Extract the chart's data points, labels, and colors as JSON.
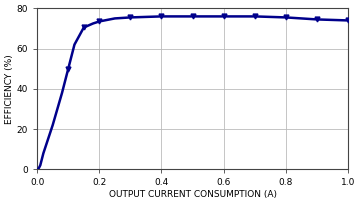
{
  "x": [
    0,
    0.005,
    0.01,
    0.02,
    0.05,
    0.08,
    0.1,
    0.12,
    0.15,
    0.18,
    0.2,
    0.25,
    0.3,
    0.4,
    0.5,
    0.6,
    0.7,
    0.8,
    0.9,
    1.0
  ],
  "y": [
    0,
    0.5,
    2,
    8,
    22,
    38,
    50,
    62,
    70.5,
    72.5,
    73.5,
    75,
    75.5,
    76,
    76,
    76,
    76,
    75.5,
    74.5,
    74
  ],
  "marker_x": [
    0.1,
    0.15,
    0.2,
    0.3,
    0.4,
    0.5,
    0.6,
    0.7,
    0.8,
    0.9,
    1.0
  ],
  "marker_y": [
    50,
    70.5,
    73.5,
    75.5,
    76,
    76,
    76,
    76,
    75.5,
    74.5,
    74
  ],
  "line_color": "#00008B",
  "marker": "v",
  "marker_size": 3.5,
  "xlabel": "OUTPUT CURRENT CONSUMPTION (A)",
  "ylabel": "EFFICIENCY (%)",
  "xlim": [
    0,
    1.0
  ],
  "ylim": [
    0,
    80
  ],
  "xticks": [
    0,
    0.2,
    0.4,
    0.6,
    0.8,
    1.0
  ],
  "yticks": [
    0,
    20,
    40,
    60,
    80
  ],
  "grid_color": "#bbbbbb",
  "background_color": "#ffffff",
  "border_color": "#444444",
  "xlabel_fontsize": 6.5,
  "ylabel_fontsize": 6.5,
  "tick_fontsize": 6.5,
  "linewidth": 1.8
}
